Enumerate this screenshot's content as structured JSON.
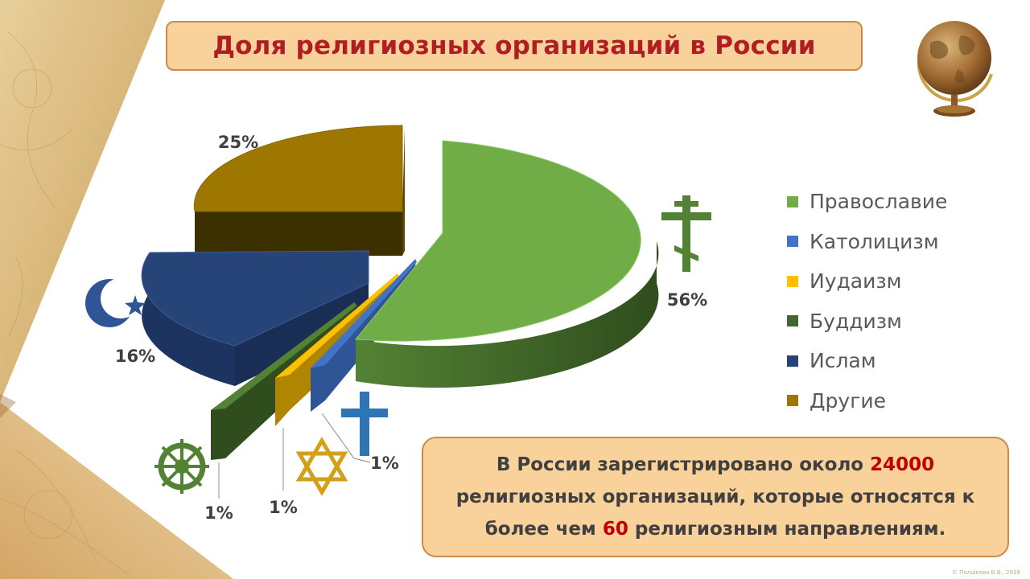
{
  "title": "Доля религиозных организаций в России",
  "chart_data": {
    "type": "pie",
    "categories": [
      "Православие",
      "Католицизм",
      "Иудаизм",
      "Буддизм",
      "Ислам",
      "Другие"
    ],
    "values": [
      56,
      1,
      1,
      1,
      16,
      25
    ],
    "data_labels": [
      "56%",
      "1%",
      "1%",
      "1%",
      "16%",
      "25%"
    ],
    "colors": [
      "#70ad47",
      "#4472c4",
      "#ffc000",
      "#43682b",
      "#264478",
      "#9e7700"
    ],
    "legend_position": "right",
    "style": "3d-exploded"
  },
  "legend": {
    "items": [
      {
        "label": "Православие",
        "color": "#70ad47"
      },
      {
        "label": "Католицизм",
        "color": "#4472c4"
      },
      {
        "label": "Иудаизм",
        "color": "#ffc000"
      },
      {
        "label": "Буддизм",
        "color": "#43682b"
      },
      {
        "label": "Ислам",
        "color": "#264478"
      },
      {
        "label": "Другие",
        "color": "#9e7700"
      }
    ]
  },
  "info": {
    "part1": "В России зарегистрировано около ",
    "number1": "24000",
    "part2": " религиозных организаций, которые относятся к более чем ",
    "number2": "60",
    "part3": " религиозным направлениям."
  },
  "icons": {
    "orthodoxy": "orthodox-cross-icon",
    "catholicism": "latin-cross-icon",
    "judaism": "star-of-david-icon",
    "buddhism": "dharma-wheel-icon",
    "islam": "crescent-star-icon"
  },
  "copyright": "© Полшкова В.В., 2018"
}
